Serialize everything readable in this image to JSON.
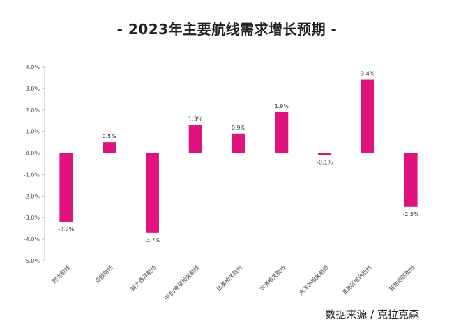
{
  "title": "- 2023年主要航线需求增长预期 -",
  "source": "数据来源 / 克拉克森",
  "chart_data": {
    "type": "bar",
    "title": "- 2023年主要航线需求增长预期 -",
    "categories": [
      "跨太航线",
      "亚欧航线",
      "跨大西洋航线",
      "中东/南亚相关航线",
      "拉美相关航线",
      "非洲相关航线",
      "大洋洲相关航线",
      "亚洲区域内航线",
      "其他地区航线"
    ],
    "values": [
      -3.2,
      0.5,
      -3.7,
      1.3,
      0.9,
      1.9,
      -0.1,
      3.4,
      -2.5
    ],
    "value_labels": [
      "-3.2%",
      "0.5%",
      "-3.7%",
      "1.3%",
      "0.9%",
      "1.9%",
      "-0.1%",
      "3.4%",
      "-2.5%"
    ],
    "yticks": [
      4,
      3,
      2,
      1,
      0,
      -1,
      -2,
      -3,
      -4,
      -5
    ],
    "ytick_labels": [
      "4.0%",
      "3.0%",
      "2.0%",
      "1.0%",
      "0.0%",
      "-1.0%",
      "-2.0%",
      "-3.0%",
      "-4.0%",
      "-5.0%"
    ],
    "ylim": [
      -5,
      4
    ],
    "xlabel": "",
    "ylabel": "",
    "grid": false,
    "bar_color": "#e0127e"
  }
}
